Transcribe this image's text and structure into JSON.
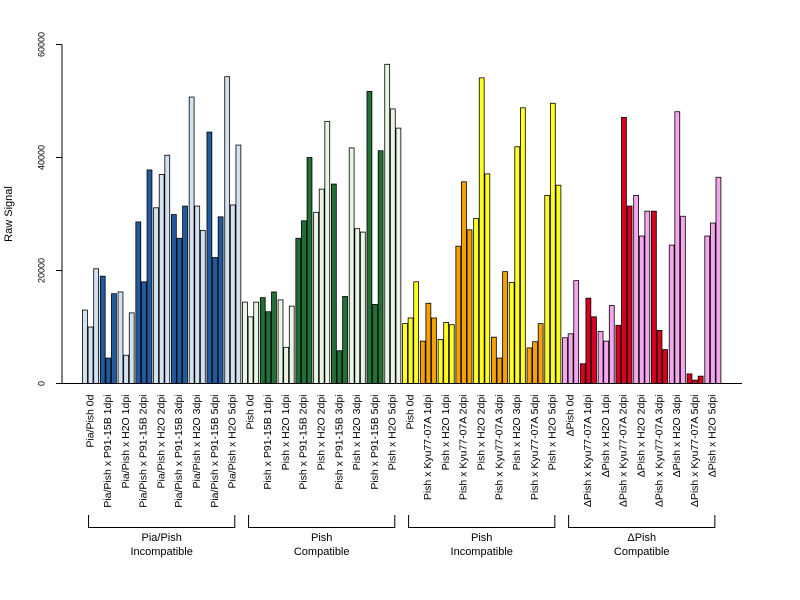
{
  "chart_data": {
    "type": "bar",
    "ylabel": "Raw Signal",
    "xlabel": "",
    "ylim": [
      0,
      60000
    ],
    "yticks": [
      0,
      20000,
      40000,
      60000
    ],
    "bars_per_category": 3,
    "categories": [
      "Pia/Pish 0d",
      "Pia/Pish x P91-15B 1dpi",
      "Pia/Pish x H2O 1dpi",
      "Pia/Pish x P91-15B 2dpi",
      "Pia/Pish x H2O 2dpi",
      "Pia/Pish x P91-15B 3dpi",
      "Pia/Pish x H2O 3dpi",
      "Pia/Pish x P91-15B 5dpi",
      "Pia/Pish x H2O 5dpi",
      "Pish 0d",
      "Pish x P91-15B 1dpi",
      "Pish x H2O 1dpi",
      "Pish x P91-15B 2dpi",
      "Pish x H2O 2dpi",
      "Pish x P91-15B 3dpi",
      "Pish x H2O 3dpi",
      "Pish x P91-15B 5dpi",
      "Pish x H2O 5dpi",
      "Pish 0d",
      "Pish x Kyu77-07A 1dpi",
      "Pish x H2O 1dpi",
      "Pish x Kyu77-07A 2dpi",
      "Pish x H2O 2dpi",
      "Pish x Kyu77-07A 3dpi",
      "Pish x H2O 3dpi",
      "Pish x Kyu77-07A 5dpi",
      "Pish x H2O 5dpi",
      "ΔPish 0d",
      "ΔPish x Kyu77-07A 1dpi",
      "ΔPish x H2O 1dpi",
      "ΔPish x Kyu77-07A 2dpi",
      "ΔPish x H2O 2dpi",
      "ΔPish x Kyu77-07A 3dpi",
      "ΔPish x H2O 3dpi",
      "ΔPish x Kyu77-07A 5dpi",
      "ΔPish x H2O 5dpi"
    ],
    "values": [
      [
        13000,
        10000,
        20300
      ],
      [
        19000,
        4500,
        15900
      ],
      [
        16200,
        5000,
        12500
      ],
      [
        28600,
        18000,
        37800
      ],
      [
        31100,
        37000,
        40400
      ],
      [
        29900,
        25700,
        31400
      ],
      [
        50700,
        31400,
        27100
      ],
      [
        44500,
        22300,
        29500
      ],
      [
        54300,
        31600,
        42200
      ],
      [
        14400,
        11800,
        14400
      ],
      [
        15200,
        12700,
        16200
      ],
      [
        14800,
        6400,
        13700
      ],
      [
        25700,
        28800,
        40000
      ],
      [
        30300,
        34400,
        46400
      ],
      [
        35300,
        5800,
        15400
      ],
      [
        41700,
        27400,
        26800
      ],
      [
        51700,
        14000,
        41200
      ],
      [
        56500,
        48600,
        45200
      ],
      [
        10600,
        11600,
        18000
      ],
      [
        7500,
        14200,
        11600
      ],
      [
        7800,
        10800,
        10400
      ],
      [
        24300,
        35700,
        27200
      ],
      [
        29200,
        54100,
        37100
      ],
      [
        8200,
        4500,
        19800
      ],
      [
        17900,
        41900,
        48800
      ],
      [
        6300,
        7400,
        10600
      ],
      [
        33300,
        49600,
        35100
      ],
      [
        8100,
        8800,
        18200
      ],
      [
        3500,
        15100,
        11800
      ],
      [
        9200,
        7500,
        13800
      ],
      [
        10300,
        47100,
        31400
      ],
      [
        33300,
        26100,
        30500
      ],
      [
        30500,
        9400,
        6000
      ],
      [
        24500,
        48100,
        29600
      ],
      [
        1700,
        600,
        1300
      ],
      [
        26100,
        28400,
        36500
      ]
    ],
    "groups": [
      {
        "label_line1": "Pia/Pish",
        "label_line2": "Incompatible",
        "start": 0,
        "end": 8,
        "colors": {
          "light": "#d3e2f1",
          "dark": "#225aa0"
        }
      },
      {
        "label_line1": "Pish",
        "label_line2": "Compatible",
        "start": 9,
        "end": 17,
        "colors": {
          "light": "#e9f6e4",
          "dark": "#227035"
        }
      },
      {
        "label_line1": "Pish",
        "label_line2": "Incompatible",
        "start": 18,
        "end": 26,
        "colors": {
          "light": "#ffff22",
          "dark": "#f5a100"
        }
      },
      {
        "label_line1": "ΔPish",
        "label_line2": "Compatible",
        "start": 27,
        "end": 35,
        "colors": {
          "light": "#f5a6ee",
          "dark": "#d7001e"
        }
      }
    ]
  }
}
